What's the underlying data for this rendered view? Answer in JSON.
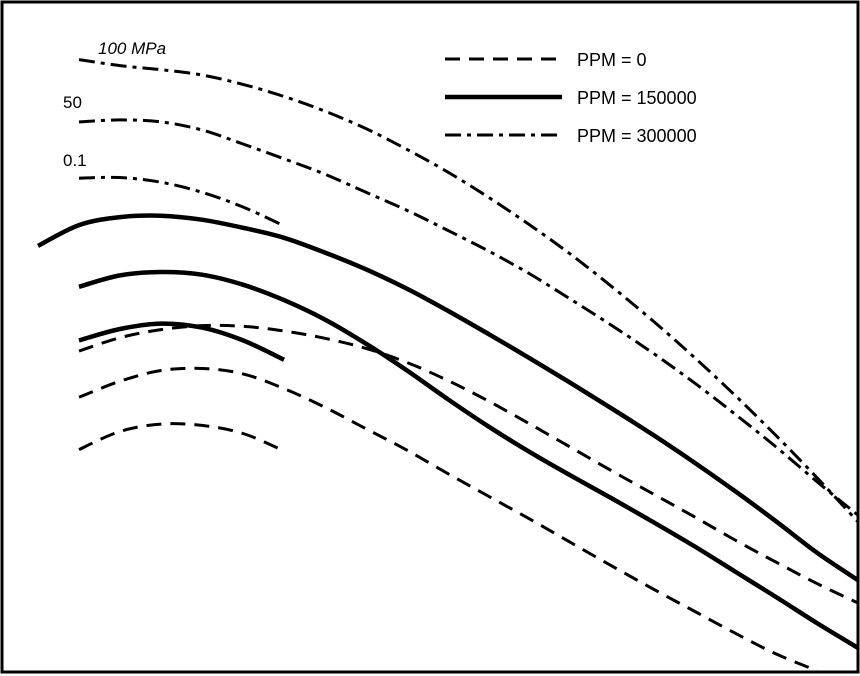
{
  "chart_data": {
    "type": "line",
    "title": "",
    "xlabel": "",
    "ylabel": "",
    "legend": {
      "placement": "top-right",
      "entries": [
        {
          "label": "PPM = 0",
          "style": "dashed"
        },
        {
          "label": "PPM = 150000",
          "style": "solid"
        },
        {
          "label": "PPM = 300000",
          "style": "dashdot"
        }
      ]
    },
    "pressure_labels": [
      "100  MPa",
      "50",
      "0.1"
    ],
    "x": [
      0,
      5,
      10,
      15,
      20,
      25,
      30,
      35,
      40,
      45,
      50,
      55,
      60,
      65,
      70,
      75,
      80,
      85,
      90,
      95,
      100
    ],
    "ylim": [
      0,
      100
    ],
    "series": [
      {
        "group": "PPM = 300000",
        "pressure": "100  MPa",
        "style": "dashdot",
        "values": [
          null,
          91.4,
          90.5,
          89.9,
          89.1,
          87.7,
          85.9,
          83.7,
          81.1,
          78.0,
          74.6,
          70.8,
          66.7,
          62.3,
          57.5,
          52.4,
          47.0,
          41.3,
          35.3,
          29.0,
          22.4
        ]
      },
      {
        "group": "PPM = 300000",
        "pressure": "50",
        "style": "dashdot",
        "values": [
          null,
          82.1,
          82.4,
          82.1,
          80.9,
          78.8,
          76.6,
          74.3,
          71.6,
          68.9,
          65.9,
          62.8,
          59.4,
          55.6,
          51.7,
          47.6,
          43.2,
          38.5,
          33.6,
          28.4,
          23.4
        ]
      },
      {
        "group": "PPM = 300000",
        "pressure": "0.1",
        "style": "dashdot",
        "values": [
          null,
          73.7,
          73.8,
          73.1,
          71.6,
          69.4,
          66.6,
          null,
          null,
          null,
          null,
          null,
          null,
          null,
          null,
          null,
          null,
          null,
          null,
          null,
          null
        ]
      },
      {
        "group": "PPM = 150000",
        "pressure": "100  MPa",
        "style": "solid",
        "values": [
          63.6,
          66.7,
          67.9,
          68.1,
          67.5,
          66.3,
          64.8,
          62.6,
          60.1,
          57.2,
          53.9,
          50.4,
          46.8,
          43.1,
          39.3,
          35.4,
          31.3,
          27.0,
          22.5,
          17.8,
          13.7
        ]
      },
      {
        "group": "PPM = 150000",
        "pressure": "50",
        "style": "solid",
        "values": [
          null,
          57.5,
          59.2,
          59.7,
          59.3,
          57.8,
          55.5,
          52.6,
          49.0,
          45.0,
          40.7,
          36.6,
          32.8,
          29.3,
          25.9,
          22.4,
          18.8,
          15.0,
          11.2,
          7.3,
          3.6
        ]
      },
      {
        "group": "PPM = 150000",
        "pressure": "0.1",
        "style": "solid",
        "values": [
          null,
          49.5,
          51.2,
          52.0,
          51.4,
          49.5,
          46.6,
          null,
          null,
          null,
          null,
          null,
          null,
          null,
          null,
          null,
          null,
          null,
          null,
          null,
          null
        ]
      },
      {
        "group": "PPM = 0",
        "pressure": "100  MPa",
        "style": "dashed",
        "values": [
          null,
          47.9,
          49.9,
          51.1,
          51.7,
          51.6,
          50.9,
          49.8,
          48.3,
          46.2,
          43.5,
          40.4,
          37.0,
          33.5,
          30.0,
          26.6,
          23.2,
          19.7,
          16.4,
          13.2,
          10.3
        ]
      },
      {
        "group": "PPM = 0",
        "pressure": "50",
        "style": "dashed",
        "values": [
          null,
          41.0,
          43.4,
          45.0,
          45.3,
          44.5,
          42.3,
          39.5,
          36.3,
          33.1,
          29.6,
          26.2,
          22.8,
          19.3,
          15.8,
          12.4,
          9.1,
          5.8,
          2.7,
          0.2,
          null
        ]
      },
      {
        "group": "PPM = 0",
        "pressure": "0.1",
        "style": "dashed",
        "values": [
          null,
          33.2,
          35.9,
          37.0,
          36.8,
          35.6,
          33.0,
          null,
          null,
          null,
          null,
          null,
          null,
          null,
          null,
          null,
          null,
          null,
          null,
          null,
          null
        ]
      }
    ]
  }
}
